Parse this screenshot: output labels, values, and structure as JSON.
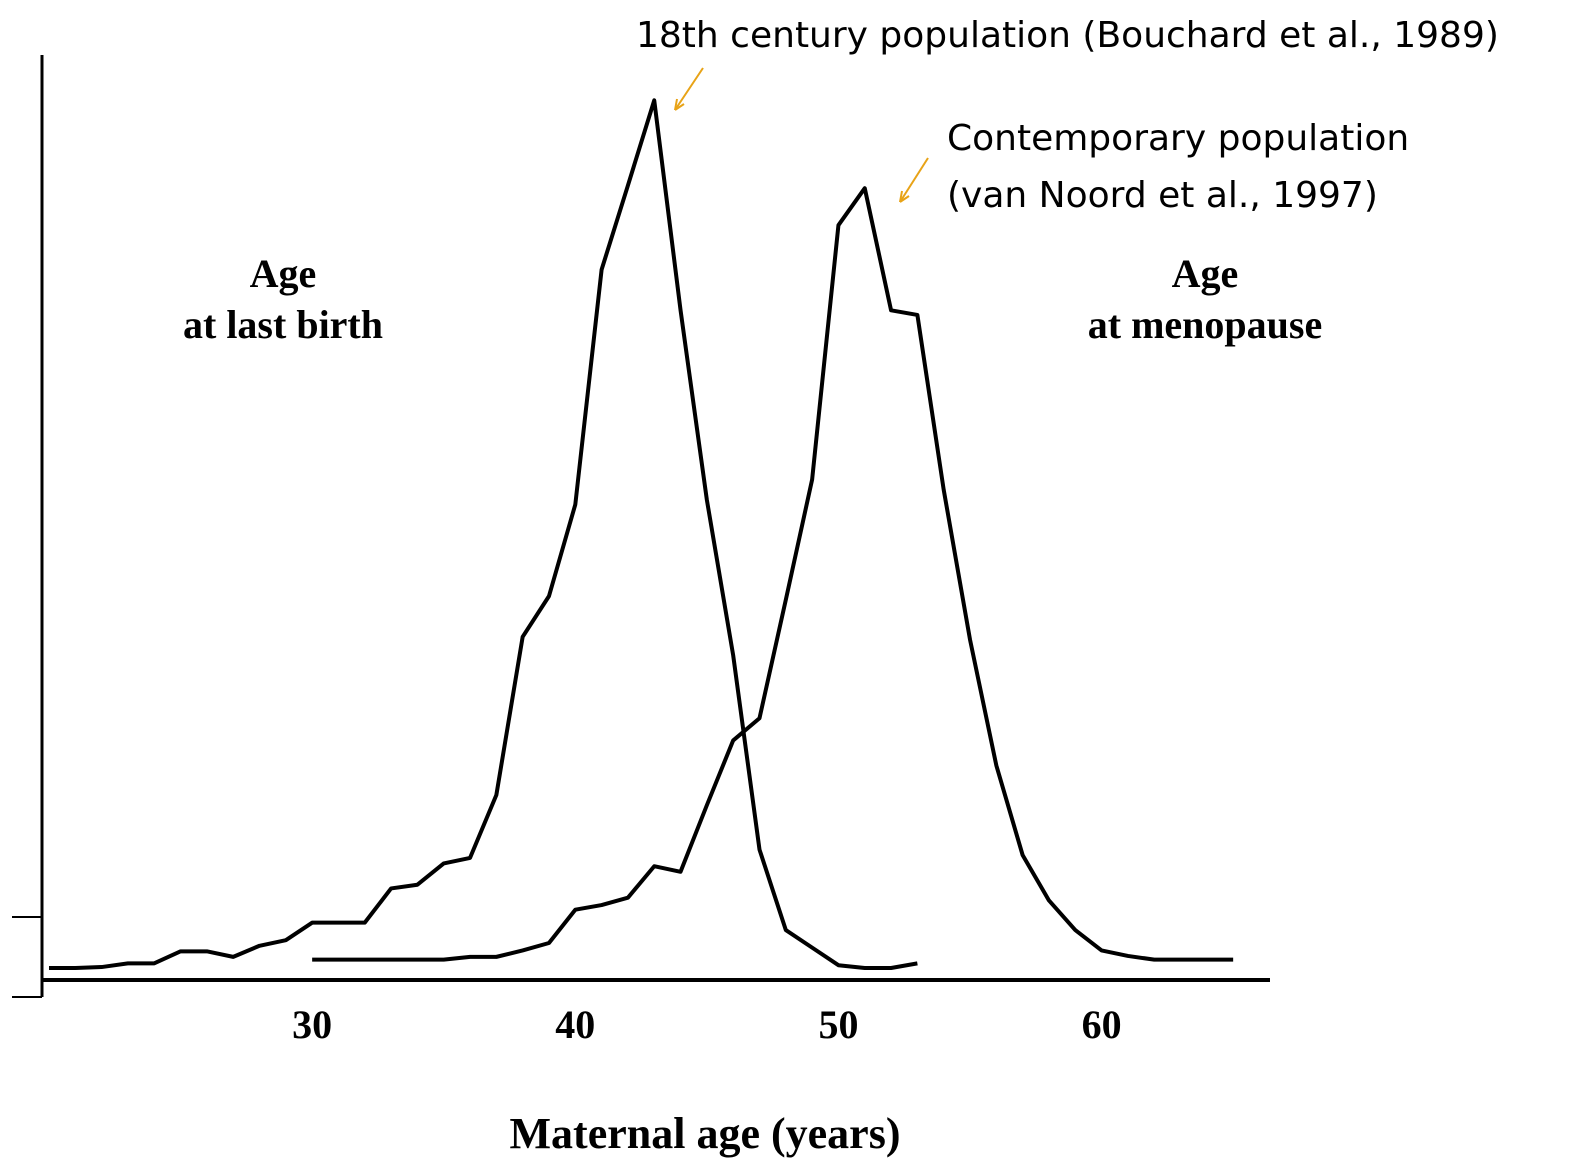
{
  "chart_data": {
    "type": "line",
    "x_label": "Maternal age (years)",
    "xlim": [
      20,
      66.4
    ],
    "ylim": [
      0,
      100
    ],
    "xticks": [
      30,
      40,
      50,
      60
    ],
    "curve_labels": [
      [
        "Age",
        "at last birth"
      ],
      [
        "Age",
        "at menopause"
      ]
    ],
    "annotations": [
      [
        "18th century population (Bouchard et al., 1989)"
      ],
      [
        "Contemporary population",
        "(van Noord et al., 1997)"
      ]
    ],
    "arrow_color": "#e8a317",
    "series": [
      {
        "color": "#000000",
        "x": [
          20,
          21,
          22,
          23,
          24,
          25,
          26,
          27,
          28,
          29,
          30,
          31,
          32,
          33,
          34,
          35,
          36,
          37,
          38,
          39,
          40,
          41,
          42,
          43,
          44,
          45,
          46,
          47,
          48,
          49,
          50,
          51,
          52,
          53
        ],
        "values": [
          1.3,
          1.3,
          1.4,
          1.8,
          1.8,
          3.1,
          3.1,
          2.5,
          3.7,
          4.3,
          6.2,
          6.2,
          6.2,
          9.9,
          10.3,
          12.6,
          13.2,
          20,
          37.1,
          41.5,
          51.4,
          76.8,
          85.9,
          95.1,
          72.4,
          51.9,
          35.1,
          14.1,
          5.4,
          3.5,
          1.6,
          1.3,
          1.3,
          1.8
        ]
      },
      {
        "color": "#000000",
        "x": [
          30,
          31,
          32,
          33,
          34,
          35,
          36,
          37,
          38,
          39,
          40,
          41,
          42,
          43,
          44,
          45,
          46,
          47,
          48,
          49,
          50,
          51,
          52,
          53,
          54,
          55,
          56,
          57,
          58,
          59,
          60,
          61,
          62,
          63,
          64,
          65
        ],
        "values": [
          2.2,
          2.2,
          2.2,
          2.2,
          2.2,
          2.2,
          2.5,
          2.5,
          3.2,
          4,
          7.6,
          8.1,
          8.9,
          12.3,
          11.7,
          18.9,
          25.9,
          28.3,
          41.1,
          54.1,
          81.6,
          85.6,
          72.4,
          71.9,
          53,
          36.8,
          23.2,
          13.5,
          8.6,
          5.4,
          3.2,
          2.6,
          2.2,
          2.2,
          2.2,
          2.2
        ]
      }
    ]
  }
}
